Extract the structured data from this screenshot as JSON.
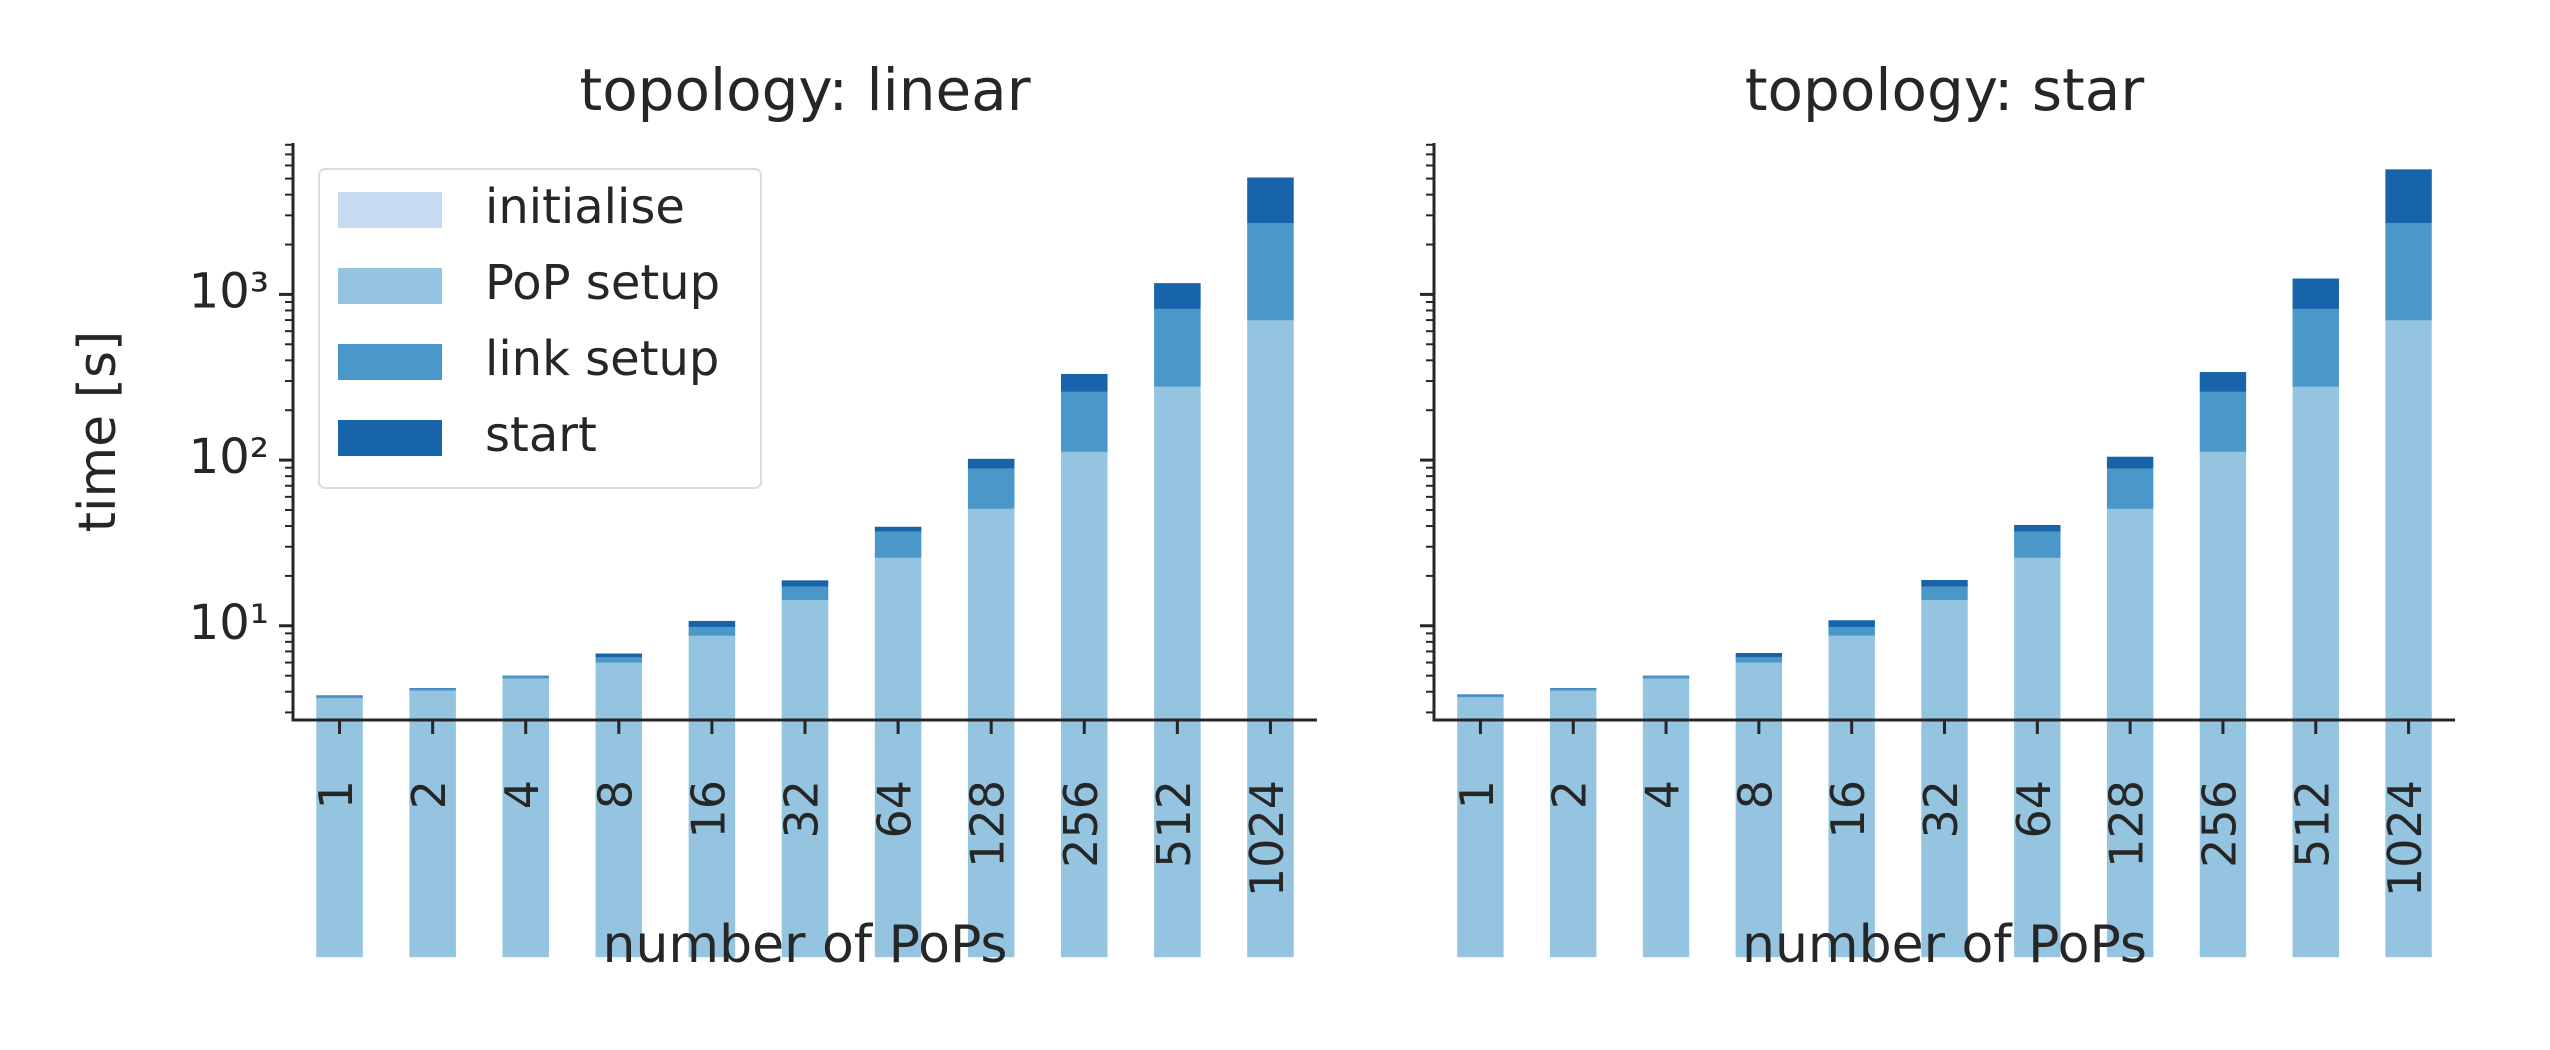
{
  "chart_data": [
    {
      "type": "stacked-bar",
      "title": "topology: linear",
      "xlabel": "number of PoPs",
      "ylabel": "time [s]",
      "categories": [
        "1",
        "2",
        "4",
        "8",
        "16",
        "32",
        "64",
        "128",
        "256",
        "512",
        "1024"
      ],
      "series": [
        {
          "name": "initialise",
          "color": "#c6dbef",
          "values": [
            0.1,
            0.1,
            0.1,
            0.1,
            0.1,
            0.1,
            0.1,
            0.1,
            0.1,
            0.1,
            0.1
          ]
        },
        {
          "name": "PoP setup",
          "color": "#94c4df",
          "values": [
            3.55,
            3.95,
            4.7,
            5.9,
            8.6,
            14.2,
            25.6,
            50.7,
            112,
            277,
            697
          ]
        },
        {
          "name": "link setup",
          "color": "#4a98c9",
          "values": [
            0.1,
            0.1,
            0.15,
            0.45,
            1.1,
            2.9,
            11.3,
            38,
            146,
            540,
            2000
          ]
        },
        {
          "name": "start",
          "color": "#1764ab",
          "values": [
            0.05,
            0.05,
            0.05,
            0.35,
            0.9,
            1.6,
            2.6,
            13,
            73,
            353,
            2380
          ]
        }
      ],
      "log_scale": "y",
      "ylim": [
        2.7,
        8200
      ],
      "yticks": [
        {
          "value": 10,
          "label": "10¹"
        },
        {
          "value": 100,
          "label": "10²"
        },
        {
          "value": 1000,
          "label": "10³"
        }
      ],
      "yminorticks": [
        3,
        4,
        5,
        6,
        7,
        8,
        9,
        20,
        30,
        40,
        50,
        60,
        70,
        80,
        90,
        200,
        300,
        400,
        500,
        600,
        700,
        800,
        900,
        2000,
        3000,
        4000,
        5000,
        6000,
        7000,
        8000
      ],
      "legend": "upper left"
    },
    {
      "type": "stacked-bar",
      "title": "topology: star",
      "xlabel": "number of PoPs",
      "categories": [
        "1",
        "2",
        "4",
        "8",
        "16",
        "32",
        "64",
        "128",
        "256",
        "512",
        "1024"
      ],
      "series": [
        {
          "name": "initialise",
          "color": "#c6dbef",
          "values": [
            0.1,
            0.1,
            0.1,
            0.1,
            0.1,
            0.1,
            0.1,
            0.1,
            0.1,
            0.1,
            0.1
          ]
        },
        {
          "name": "PoP setup",
          "color": "#94c4df",
          "values": [
            3.6,
            3.95,
            4.7,
            5.9,
            8.6,
            14.2,
            25.6,
            50.7,
            112,
            277,
            697
          ]
        },
        {
          "name": "link setup",
          "color": "#4a98c9",
          "values": [
            0.1,
            0.1,
            0.15,
            0.45,
            1.1,
            2.9,
            11.3,
            38,
            146,
            540,
            2000
          ]
        },
        {
          "name": "start",
          "color": "#1764ab",
          "values": [
            0.05,
            0.05,
            0.05,
            0.4,
            1.0,
            1.7,
            3.6,
            16,
            82,
            430,
            2990
          ]
        }
      ],
      "log_scale": "y",
      "ylim": [
        2.7,
        8200
      ],
      "yticks": [
        10,
        100,
        1000
      ],
      "yminorticks": [
        3,
        4,
        5,
        6,
        7,
        8,
        9,
        20,
        30,
        40,
        50,
        60,
        70,
        80,
        90,
        200,
        300,
        400,
        500,
        600,
        700,
        800,
        900,
        2000,
        3000,
        4000,
        5000,
        6000,
        7000,
        8000
      ]
    }
  ]
}
